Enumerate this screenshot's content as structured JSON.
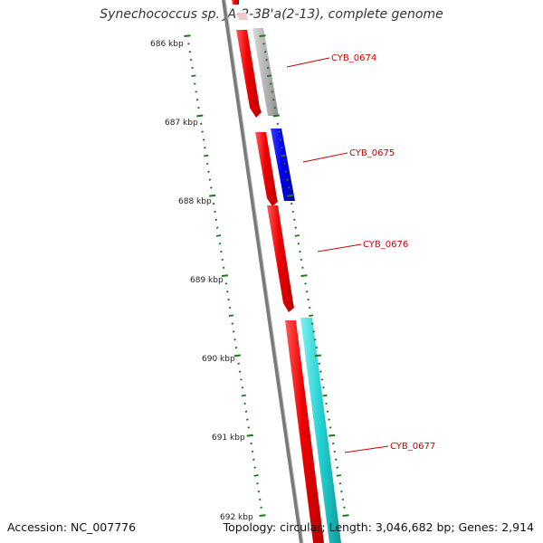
{
  "title": "Synechococcus sp. JA-2-3B'a(2-13), complete genome",
  "footer": {
    "accession": "Accession: NC_007776",
    "summary": "Topology: circular; Length: 3,046,682 bp; Genes: 2,914"
  },
  "ticks": [
    "686 kbp",
    "687 kbp",
    "688 kbp",
    "689 kbp",
    "690 kbp",
    "691 kbp",
    "692 kbp"
  ],
  "colors": {
    "backbone": "#7a7a7a",
    "cds": "#ee0000",
    "gene_label": "#cc0000",
    "tick": "#1a7a1a",
    "gene_674": "#b4b4b4",
    "gene_675": "#0000ee",
    "gene_677": "#22d0d0"
  },
  "genes": [
    {
      "name": "CYB_0674",
      "color_key": "gene_674"
    },
    {
      "name": "CYB_0675",
      "color_key": "gene_675"
    },
    {
      "name": "CYB_0676",
      "color_key": "none"
    },
    {
      "name": "CYB_0677",
      "color_key": "gene_677"
    }
  ]
}
